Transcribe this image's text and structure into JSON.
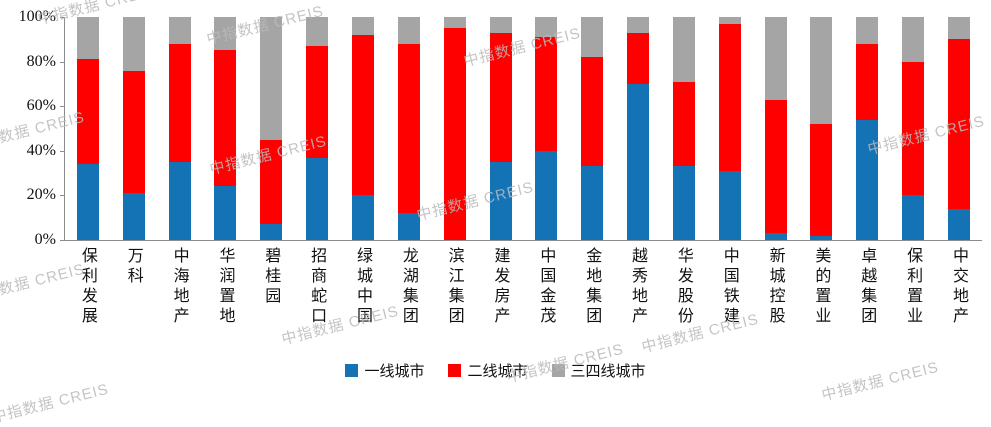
{
  "watermark": {
    "text": "中指数据 CREIS"
  },
  "chart_data": {
    "type": "bar",
    "subtype": "stacked-100-percent",
    "title": "",
    "xlabel": "",
    "ylabel": "",
    "ylim": [
      0,
      100
    ],
    "grid": false,
    "legend_position": "bottom",
    "y_tick_labels": [
      "100%",
      "80%",
      "60%",
      "40%",
      "20%",
      "0%"
    ],
    "categories": [
      "保利发展",
      "万科",
      "中海地产",
      "华润置地",
      "碧桂园",
      "招商蛇口",
      "绿城中国",
      "龙湖集团",
      "滨江集团",
      "建发房产",
      "中国金茂",
      "金地集团",
      "越秀地产",
      "华发股份",
      "中国铁建",
      "新城控股",
      "美的置业",
      "卓越集团",
      "保利置业",
      "中交地产"
    ],
    "series": [
      {
        "name": "一线城市",
        "color": "#1473B5",
        "values": [
          34,
          21,
          35,
          24,
          7,
          37,
          20,
          12,
          0,
          35,
          40,
          33,
          70,
          33,
          31,
          3,
          2,
          54,
          20,
          14
        ]
      },
      {
        "name": "二线城市",
        "color": "#FE0000",
        "values": [
          47,
          55,
          53,
          61,
          38,
          50,
          72,
          76,
          95,
          58,
          51,
          49,
          23,
          38,
          66,
          60,
          50,
          34,
          60,
          76
        ]
      },
      {
        "name": "三四线城市",
        "color": "#A5A5A5",
        "values": [
          19,
          24,
          12,
          15,
          55,
          13,
          8,
          12,
          5,
          7,
          9,
          18,
          7,
          29,
          3,
          37,
          48,
          12,
          20,
          10
        ]
      }
    ]
  }
}
